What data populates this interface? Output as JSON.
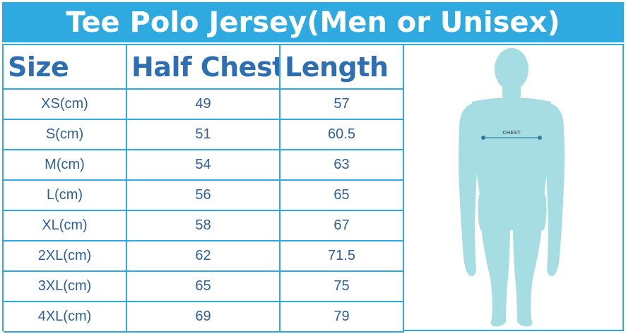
{
  "title": "Tee Polo Jersey(Men or Unisex)",
  "columns": [
    "Size",
    "Half Chest",
    "Length"
  ],
  "rows": [
    {
      "size": "XS(cm)",
      "half_chest": "49",
      "length": "57"
    },
    {
      "size": "S(cm)",
      "half_chest": "51",
      "length": "60.5"
    },
    {
      "size": "M(cm)",
      "half_chest": "54",
      "length": "63"
    },
    {
      "size": "L(cm)",
      "half_chest": "56",
      "length": "65"
    },
    {
      "size": "XL(cm)",
      "half_chest": "58",
      "length": "67"
    },
    {
      "size": "2XL(cm)",
      "half_chest": "62",
      "length": "71.5"
    },
    {
      "size": "3XL(cm)",
      "half_chest": "65",
      "length": "75"
    },
    {
      "size": "4XL(cm)",
      "half_chest": "69",
      "length": "79"
    }
  ],
  "figure": {
    "icon": "body-silhouette-icon",
    "chest_label": "CHEST",
    "body_color": "#a6dde3",
    "accent_color": "#2eaae1"
  }
}
